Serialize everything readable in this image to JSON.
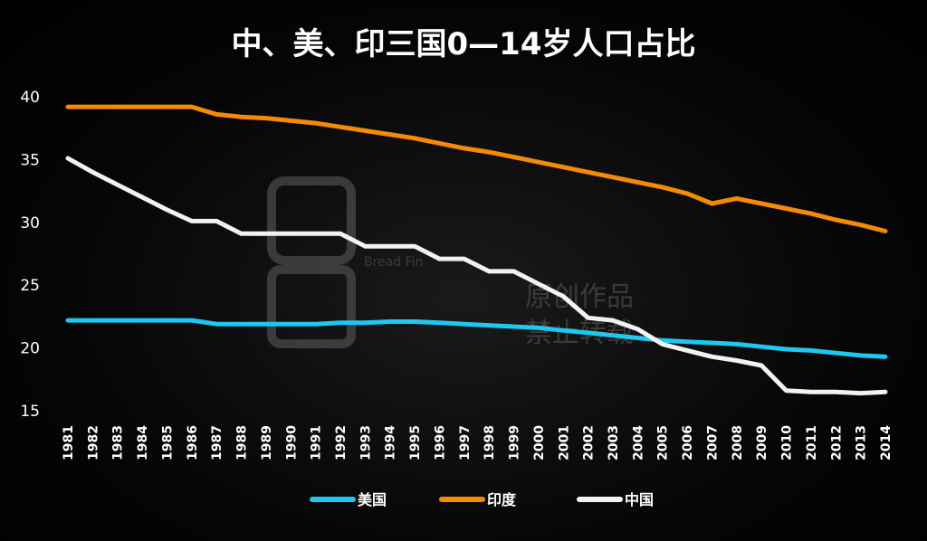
{
  "chart_data": {
    "type": "line",
    "title": "中、美、印三国0—14岁人口占比",
    "xlabel": "",
    "ylabel": "",
    "ylim": [
      15,
      40
    ],
    "yticks": [
      15,
      20,
      25,
      30,
      35,
      40
    ],
    "grid": false,
    "legend_position": "bottom-center",
    "x": [
      "1981",
      "1982",
      "1983",
      "1984",
      "1985",
      "1986",
      "1987",
      "1988",
      "1989",
      "1990",
      "1991",
      "1992",
      "1993",
      "1994",
      "1995",
      "1996",
      "1997",
      "1998",
      "1999",
      "2000",
      "2001",
      "2002",
      "2003",
      "2004",
      "2005",
      "2006",
      "2007",
      "2008",
      "2009",
      "2010",
      "2011",
      "2012",
      "2013",
      "2014"
    ],
    "series": [
      {
        "name": "美国",
        "color": "#1ec8f0",
        "values": [
          22.2,
          22.2,
          22.2,
          22.2,
          22.2,
          22.2,
          21.9,
          21.9,
          21.9,
          21.9,
          21.9,
          22.0,
          22.0,
          22.1,
          22.1,
          22.0,
          21.9,
          21.8,
          21.7,
          21.6,
          21.4,
          21.2,
          21.0,
          20.8,
          20.6,
          20.5,
          20.4,
          20.3,
          20.1,
          19.9,
          19.8,
          19.6,
          19.4,
          19.3
        ]
      },
      {
        "name": "印度",
        "color": "#f58a05",
        "values": [
          39.2,
          39.2,
          39.2,
          39.2,
          39.2,
          39.2,
          38.6,
          38.4,
          38.3,
          38.1,
          37.9,
          37.6,
          37.3,
          37.0,
          36.7,
          36.3,
          35.9,
          35.6,
          35.2,
          34.8,
          34.4,
          34.0,
          33.6,
          33.2,
          32.8,
          32.3,
          31.5,
          31.9,
          31.5,
          31.1,
          30.7,
          30.2,
          29.8,
          29.3
        ]
      },
      {
        "name": "中国",
        "color": "#f2f2f2",
        "values": [
          35.1,
          34.0,
          33.0,
          32.0,
          31.0,
          30.1,
          30.1,
          29.1,
          29.1,
          29.1,
          29.1,
          29.1,
          28.1,
          28.1,
          28.1,
          27.1,
          27.1,
          26.1,
          26.1,
          25.1,
          24.1,
          22.4,
          22.2,
          21.5,
          20.3,
          19.8,
          19.3,
          19.0,
          18.6,
          16.6,
          16.5,
          16.5,
          16.4,
          16.5
        ]
      }
    ]
  },
  "watermark": {
    "brand_en": "Bread Fin",
    "line1": "原创作品",
    "line2": "禁止转载"
  }
}
